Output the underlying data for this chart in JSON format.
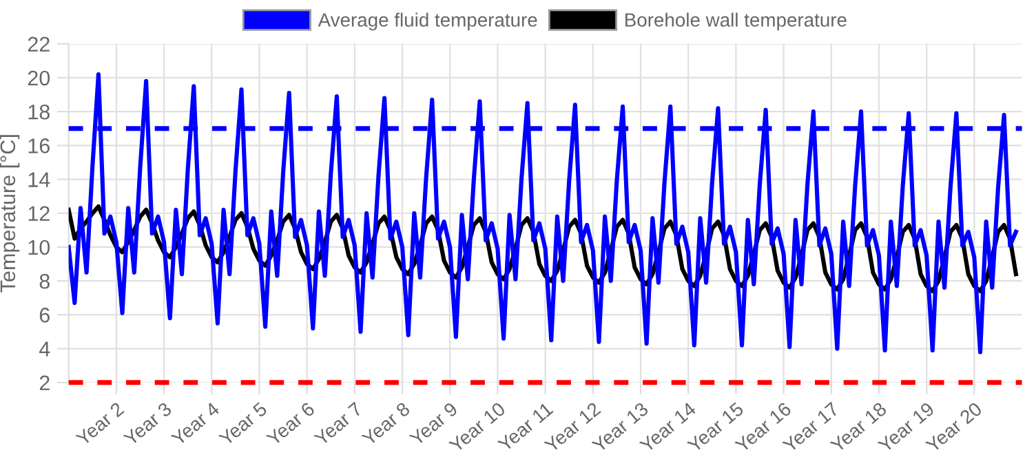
{
  "chart_data": {
    "type": "line",
    "ylabel": "Temperature [°C]",
    "categories": [
      null,
      null,
      null,
      null,
      null,
      null,
      null,
      null,
      "Year 2",
      null,
      null,
      null,
      null,
      null,
      null,
      null,
      "Year 3",
      null,
      null,
      null,
      null,
      null,
      null,
      null,
      "Year 4",
      null,
      null,
      null,
      null,
      null,
      null,
      null,
      "Year 5",
      null,
      null,
      null,
      null,
      null,
      null,
      null,
      "Year 6",
      null,
      null,
      null,
      null,
      null,
      null,
      null,
      "Year 7",
      null,
      null,
      null,
      null,
      null,
      null,
      null,
      "Year 8",
      null,
      null,
      null,
      null,
      null,
      null,
      null,
      "Year 9",
      null,
      null,
      null,
      null,
      null,
      null,
      null,
      "Year 10",
      null,
      null,
      null,
      null,
      null,
      null,
      null,
      "Year 11",
      null,
      null,
      null,
      null,
      null,
      null,
      null,
      "Year 12",
      null,
      null,
      null,
      null,
      null,
      null,
      null,
      "Year 13",
      null,
      null,
      null,
      null,
      null,
      null,
      null,
      "Year 14",
      null,
      null,
      null,
      null,
      null,
      null,
      null,
      "Year 15",
      null,
      null,
      null,
      null,
      null,
      null,
      null,
      "Year 16",
      null,
      null,
      null,
      null,
      null,
      null,
      null,
      "Year 17",
      null,
      null,
      null,
      null,
      null,
      null,
      null,
      "Year 18",
      null,
      null,
      null,
      null,
      null,
      null,
      null,
      "Year 19",
      null,
      null,
      null,
      null,
      null,
      null,
      null,
      "Year 20",
      null,
      null,
      null,
      null,
      null,
      null,
      null
    ],
    "ylim": [
      2,
      22
    ],
    "yticks": [
      2,
      4,
      6,
      8,
      10,
      12,
      14,
      16,
      18,
      20,
      22
    ],
    "grid": true,
    "legend": "top",
    "line_style": "solid",
    "marker": "none",
    "series": [
      {
        "name": "Average fluid temperature",
        "color": "#0000ff",
        "values": [
          10.0,
          6.7,
          12.3,
          8.5,
          14.8,
          20.2,
          10.8,
          11.8,
          10.3,
          6.1,
          12.3,
          8.5,
          14.7,
          19.8,
          10.8,
          11.8,
          10.3,
          5.8,
          12.2,
          8.4,
          14.6,
          19.5,
          10.7,
          11.7,
          10.2,
          5.5,
          12.2,
          8.4,
          14.5,
          19.3,
          10.7,
          11.7,
          10.2,
          5.3,
          12.1,
          8.3,
          14.4,
          19.1,
          10.6,
          11.6,
          10.1,
          5.2,
          12.1,
          8.3,
          14.3,
          18.9,
          10.6,
          11.6,
          10.1,
          5.0,
          12.0,
          8.2,
          14.2,
          18.8,
          10.5,
          11.5,
          10.0,
          4.8,
          12.0,
          8.2,
          14.1,
          18.7,
          10.5,
          11.5,
          10.0,
          4.7,
          11.9,
          8.1,
          14.0,
          18.6,
          10.4,
          11.4,
          9.9,
          4.6,
          11.9,
          8.1,
          14.0,
          18.5,
          10.4,
          11.4,
          9.9,
          4.5,
          11.8,
          8.0,
          13.9,
          18.4,
          10.3,
          11.3,
          9.8,
          4.4,
          11.8,
          8.0,
          13.9,
          18.3,
          10.3,
          11.3,
          9.8,
          4.3,
          11.7,
          7.9,
          13.8,
          18.3,
          10.2,
          11.2,
          9.7,
          4.2,
          11.7,
          7.9,
          13.8,
          18.2,
          10.2,
          11.2,
          9.7,
          4.2,
          11.6,
          7.8,
          13.7,
          18.1,
          10.2,
          11.1,
          9.6,
          4.1,
          11.6,
          7.8,
          13.7,
          18.0,
          10.1,
          11.1,
          9.6,
          4.0,
          11.5,
          7.7,
          13.6,
          18.0,
          10.1,
          11.0,
          9.5,
          3.9,
          11.5,
          7.7,
          13.6,
          17.9,
          10.1,
          11.0,
          9.5,
          3.9,
          11.5,
          7.6,
          13.5,
          17.9,
          10.1,
          10.9,
          9.4,
          3.8,
          11.5,
          7.6,
          13.5,
          17.8,
          10.1,
          10.9
        ]
      },
      {
        "name": "Borehole wall temperature",
        "color": "#000000",
        "values": [
          12.2,
          10.5,
          11.1,
          11.5,
          12.0,
          12.4,
          11.6,
          10.7,
          10.0,
          9.7,
          10.3,
          11.0,
          11.8,
          12.2,
          11.4,
          10.4,
          9.7,
          9.4,
          10.0,
          10.8,
          11.7,
          12.1,
          11.3,
          10.1,
          9.4,
          9.1,
          9.7,
          10.6,
          11.6,
          12.0,
          11.2,
          9.9,
          9.2,
          8.9,
          9.5,
          10.4,
          11.5,
          11.9,
          11.1,
          9.7,
          9.0,
          8.7,
          9.3,
          10.3,
          11.5,
          11.9,
          11.1,
          9.5,
          8.8,
          8.5,
          9.1,
          10.2,
          11.4,
          11.8,
          11.0,
          9.4,
          8.7,
          8.4,
          9.0,
          10.1,
          11.4,
          11.8,
          11.0,
          9.2,
          8.5,
          8.2,
          8.8,
          10.0,
          11.3,
          11.7,
          10.9,
          9.1,
          8.4,
          8.1,
          8.7,
          9.9,
          11.3,
          11.7,
          10.9,
          9.0,
          8.3,
          8.0,
          8.6,
          9.8,
          11.2,
          11.6,
          10.8,
          8.9,
          8.2,
          7.9,
          8.5,
          9.8,
          11.2,
          11.6,
          10.8,
          8.8,
          8.1,
          7.8,
          8.4,
          9.7,
          11.1,
          11.5,
          10.7,
          8.7,
          8.0,
          7.7,
          8.3,
          9.6,
          11.1,
          11.5,
          10.7,
          8.7,
          8.0,
          7.7,
          8.3,
          9.6,
          11.0,
          11.4,
          10.6,
          8.6,
          7.9,
          7.6,
          8.2,
          9.5,
          11.0,
          11.4,
          10.6,
          8.5,
          7.8,
          7.5,
          8.1,
          9.5,
          11.0,
          11.4,
          10.6,
          8.5,
          7.8,
          7.5,
          8.1,
          9.4,
          10.9,
          11.3,
          10.5,
          8.4,
          7.7,
          7.4,
          8.0,
          9.4,
          10.9,
          11.3,
          10.5,
          8.4,
          7.7,
          7.4,
          8.0,
          9.4,
          10.9,
          11.3,
          10.5,
          8.4
        ]
      }
    ],
    "ref_lines": [
      {
        "axis": "y",
        "value": 17,
        "color": "#0000ff",
        "line_style": "dashed"
      },
      {
        "axis": "y",
        "value": 2,
        "color": "#ff0000",
        "line_style": "dashed"
      }
    ]
  }
}
